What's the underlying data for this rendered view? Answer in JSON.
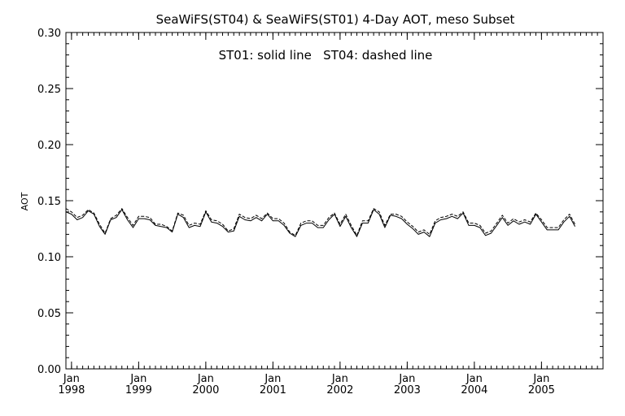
{
  "chart_data": {
    "type": "line",
    "title": "SeaWiFS(ST04) & SeaWiFS(ST01) 4-Day AOT, meso Subset",
    "annotation": "ST01: solid line   ST04: dashed line",
    "xlabel": "",
    "ylabel": "AOT",
    "xlim": [
      "1997-12",
      "2005-12"
    ],
    "ylim": [
      0.0,
      0.3
    ],
    "y_ticks": [
      "0.00",
      "0.05",
      "0.10",
      "0.15",
      "0.20",
      "0.25",
      "0.30"
    ],
    "x_ticks": [
      {
        "month": "Jan",
        "year": "1998",
        "x": "1998-01"
      },
      {
        "month": "Jan",
        "year": "1999",
        "x": "1999-01"
      },
      {
        "month": "Jan",
        "year": "2000",
        "x": "2000-01"
      },
      {
        "month": "Jan",
        "year": "2001",
        "x": "2001-01"
      },
      {
        "month": "Jan",
        "year": "2002",
        "x": "2002-01"
      },
      {
        "month": "Jan",
        "year": "2003",
        "x": "2003-01"
      },
      {
        "month": "Jan",
        "year": "2004",
        "x": "2004-01"
      },
      {
        "month": "Jan",
        "year": "2005",
        "x": "2005-01"
      }
    ],
    "grid": false,
    "start_month": "1997-12",
    "series": [
      {
        "style": "solid",
        "values": [
          0.14,
          0.138,
          0.133,
          0.135,
          0.141,
          0.138,
          0.127,
          0.12,
          0.133,
          0.135,
          0.142,
          0.133,
          0.126,
          0.134,
          0.134,
          0.133,
          0.128,
          0.127,
          0.126,
          0.122,
          0.138,
          0.135,
          0.126,
          0.128,
          0.127,
          0.14,
          0.131,
          0.13,
          0.127,
          0.122,
          0.123,
          0.136,
          0.133,
          0.132,
          0.135,
          0.132,
          0.138,
          0.132,
          0.132,
          0.128,
          0.121,
          0.118,
          0.128,
          0.13,
          0.13,
          0.126,
          0.126,
          0.133,
          0.138,
          0.127,
          0.136,
          0.126,
          0.118,
          0.13,
          0.13,
          0.142,
          0.138,
          0.126,
          0.137,
          0.136,
          0.134,
          0.129,
          0.125,
          0.12,
          0.122,
          0.118,
          0.13,
          0.133,
          0.134,
          0.136,
          0.134,
          0.139,
          0.128,
          0.128,
          0.126,
          0.119,
          0.121,
          0.128,
          0.135,
          0.128,
          0.132,
          0.129,
          0.131,
          0.129,
          0.138,
          0.131,
          0.124,
          0.124,
          0.124,
          0.131,
          0.136,
          0.127
        ]
      },
      {
        "style": "dashed",
        "values": [
          0.143,
          0.14,
          0.135,
          0.137,
          0.142,
          0.139,
          0.129,
          0.121,
          0.134,
          0.137,
          0.143,
          0.135,
          0.128,
          0.136,
          0.136,
          0.135,
          0.129,
          0.129,
          0.127,
          0.123,
          0.139,
          0.137,
          0.128,
          0.13,
          0.129,
          0.141,
          0.133,
          0.132,
          0.129,
          0.123,
          0.125,
          0.138,
          0.135,
          0.134,
          0.137,
          0.134,
          0.139,
          0.134,
          0.134,
          0.13,
          0.122,
          0.119,
          0.13,
          0.132,
          0.132,
          0.128,
          0.128,
          0.135,
          0.139,
          0.129,
          0.138,
          0.128,
          0.119,
          0.132,
          0.132,
          0.143,
          0.14,
          0.128,
          0.138,
          0.138,
          0.136,
          0.131,
          0.127,
          0.122,
          0.124,
          0.12,
          0.132,
          0.135,
          0.136,
          0.138,
          0.136,
          0.14,
          0.13,
          0.13,
          0.128,
          0.121,
          0.123,
          0.13,
          0.137,
          0.13,
          0.134,
          0.131,
          0.133,
          0.131,
          0.139,
          0.133,
          0.126,
          0.126,
          0.126,
          0.133,
          0.138,
          0.129
        ]
      }
    ]
  }
}
